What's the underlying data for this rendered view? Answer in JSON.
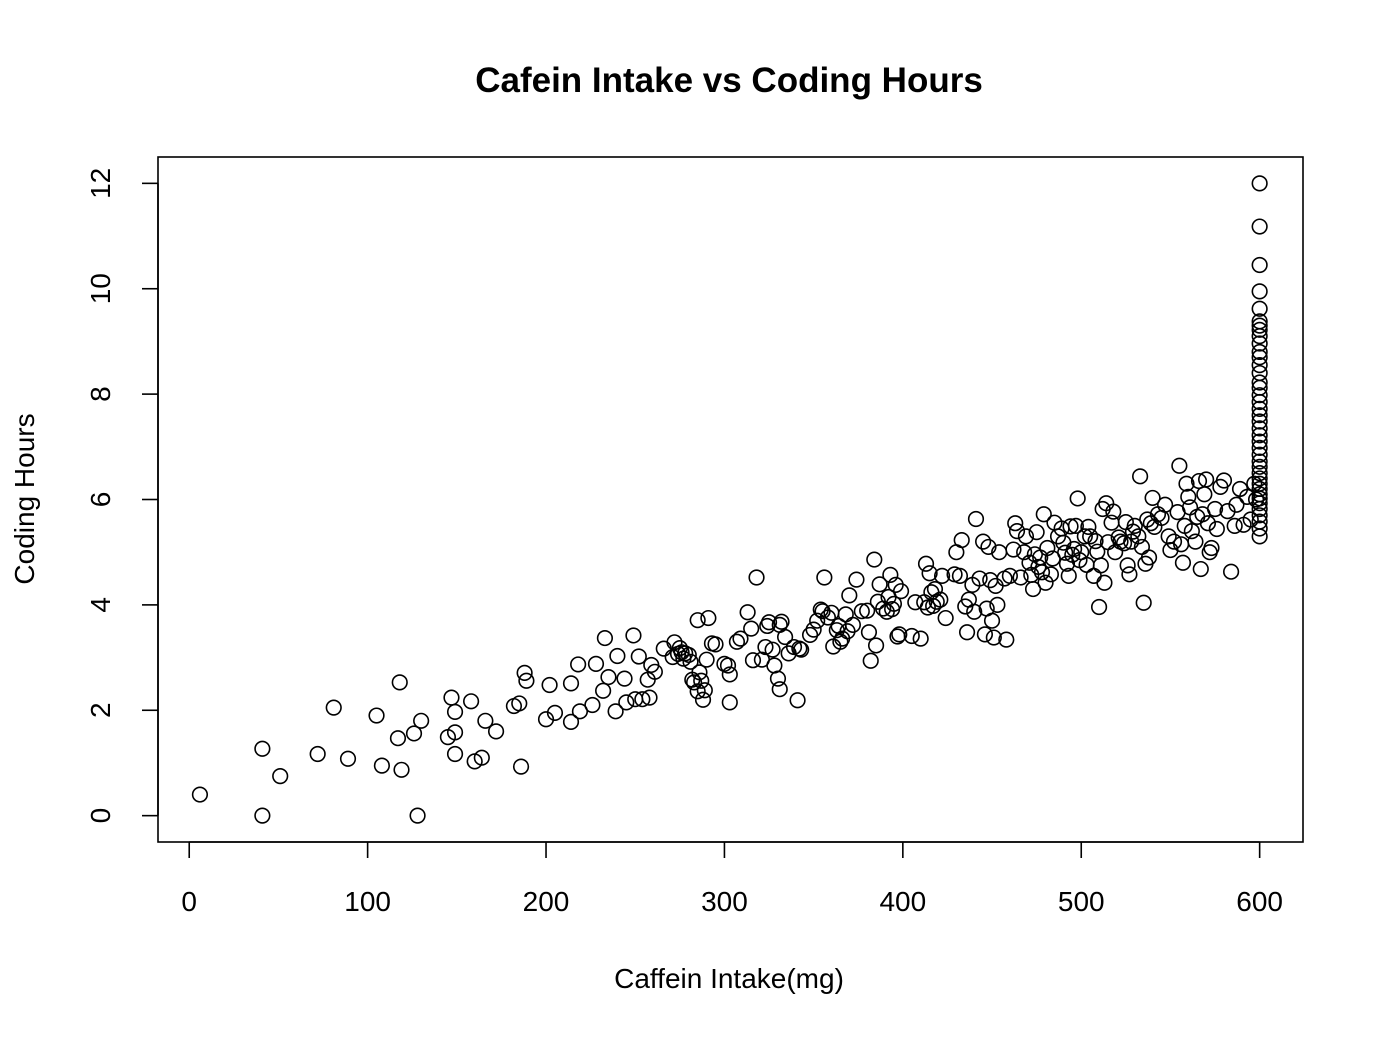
{
  "chart_data": {
    "type": "scatter",
    "title": "Cafein Intake vs Coding Hours",
    "xlabel": "Caffein Intake(mg)",
    "ylabel": "Coding Hours",
    "xlim": [
      -17.5,
      624.3
    ],
    "ylim": [
      -0.5,
      12.5
    ],
    "xticks": [
      0,
      100,
      200,
      300,
      400,
      500,
      600
    ],
    "yticks": [
      0,
      2,
      4,
      6,
      8,
      10,
      12
    ],
    "grid": false,
    "legend": "none",
    "points": [
      [
        6,
        0.4
      ],
      [
        41,
        1.27
      ],
      [
        41,
        0.0
      ],
      [
        51,
        0.75
      ],
      [
        72,
        1.17
      ],
      [
        81,
        2.05
      ],
      [
        89,
        1.08
      ],
      [
        105,
        1.9
      ],
      [
        108,
        0.95
      ],
      [
        117,
        1.47
      ],
      [
        118,
        2.53
      ],
      [
        119,
        0.87
      ],
      [
        126,
        1.56
      ],
      [
        128,
        0.0
      ],
      [
        130,
        1.8
      ],
      [
        145,
        1.49
      ],
      [
        147,
        2.24
      ],
      [
        149,
        1.97
      ],
      [
        149,
        1.58
      ],
      [
        149,
        1.17
      ],
      [
        158,
        2.17
      ],
      [
        160,
        1.03
      ],
      [
        164,
        1.1
      ],
      [
        166,
        1.8
      ],
      [
        172,
        1.6
      ],
      [
        182,
        2.08
      ],
      [
        185,
        2.13
      ],
      [
        186,
        0.93
      ],
      [
        188,
        2.71
      ],
      [
        189,
        2.56
      ],
      [
        200,
        1.83
      ],
      [
        202,
        2.48
      ],
      [
        205,
        1.95
      ],
      [
        214,
        2.51
      ],
      [
        214,
        1.78
      ],
      [
        218,
        2.87
      ],
      [
        219,
        1.98
      ],
      [
        226,
        2.1
      ],
      [
        228,
        2.88
      ],
      [
        232,
        2.37
      ],
      [
        233,
        3.37
      ],
      [
        235,
        2.63
      ],
      [
        239,
        1.98
      ],
      [
        240,
        3.03
      ],
      [
        244,
        2.6
      ],
      [
        245,
        2.15
      ],
      [
        249,
        3.42
      ],
      [
        250,
        2.21
      ],
      [
        252,
        3.02
      ],
      [
        254,
        2.21
      ],
      [
        257,
        2.58
      ],
      [
        258,
        2.24
      ],
      [
        259,
        2.86
      ],
      [
        261,
        2.73
      ],
      [
        266,
        3.17
      ],
      [
        271,
        3.01
      ],
      [
        272,
        3.29
      ],
      [
        274,
        3.07
      ],
      [
        275,
        3.18
      ],
      [
        276,
        3.1
      ],
      [
        277,
        2.98
      ],
      [
        278,
        3.08
      ],
      [
        280,
        3.05
      ],
      [
        281,
        2.92
      ],
      [
        282,
        2.58
      ],
      [
        283,
        2.53
      ],
      [
        285,
        2.36
      ],
      [
        285,
        3.71
      ],
      [
        286,
        2.72
      ],
      [
        287,
        2.56
      ],
      [
        288,
        2.2
      ],
      [
        289,
        2.38
      ],
      [
        290,
        2.96
      ],
      [
        291,
        3.75
      ],
      [
        293,
        3.27
      ],
      [
        295,
        3.25
      ],
      [
        300,
        2.88
      ],
      [
        302,
        2.85
      ],
      [
        303,
        2.68
      ],
      [
        303,
        2.15
      ],
      [
        307,
        3.3
      ],
      [
        309,
        3.36
      ],
      [
        313,
        3.86
      ],
      [
        315,
        3.55
      ],
      [
        316,
        2.95
      ],
      [
        318,
        4.52
      ],
      [
        321,
        2.96
      ],
      [
        323,
        3.2
      ],
      [
        324,
        3.6
      ],
      [
        325,
        3.67
      ],
      [
        327,
        3.15
      ],
      [
        328,
        2.85
      ],
      [
        330,
        2.6
      ],
      [
        331,
        2.4
      ],
      [
        331,
        3.62
      ],
      [
        332,
        3.68
      ],
      [
        334,
        3.39
      ],
      [
        336,
        3.08
      ],
      [
        339,
        3.2
      ],
      [
        342,
        3.17
      ],
      [
        341,
        2.19
      ],
      [
        343,
        3.15
      ],
      [
        348,
        3.43
      ],
      [
        350,
        3.53
      ],
      [
        352,
        3.7
      ],
      [
        354,
        3.91
      ],
      [
        355,
        3.88
      ],
      [
        356,
        4.52
      ],
      [
        358,
        3.76
      ],
      [
        360,
        3.85
      ],
      [
        361,
        3.21
      ],
      [
        363,
        3.52
      ],
      [
        364,
        3.6
      ],
      [
        365,
        3.3
      ],
      [
        366,
        3.36
      ],
      [
        368,
        3.82
      ],
      [
        369,
        3.5
      ],
      [
        370,
        4.18
      ],
      [
        372,
        3.62
      ],
      [
        374,
        4.48
      ],
      [
        377,
        3.88
      ],
      [
        380,
        3.89
      ],
      [
        381,
        3.48
      ],
      [
        382,
        2.94
      ],
      [
        384,
        4.86
      ],
      [
        385,
        3.23
      ],
      [
        386,
        4.06
      ],
      [
        387,
        4.39
      ],
      [
        389,
        3.93
      ],
      [
        391,
        3.87
      ],
      [
        392,
        4.15
      ],
      [
        393,
        4.57
      ],
      [
        394,
        3.92
      ],
      [
        395,
        4.02
      ],
      [
        396,
        4.38
      ],
      [
        397,
        3.4
      ],
      [
        398,
        3.44
      ],
      [
        399,
        4.26
      ],
      [
        405,
        3.41
      ],
      [
        407,
        4.05
      ],
      [
        410,
        3.36
      ],
      [
        412,
        4.05
      ],
      [
        413,
        4.78
      ],
      [
        414,
        3.95
      ],
      [
        415,
        4.6
      ],
      [
        416,
        4.24
      ],
      [
        417,
        3.98
      ],
      [
        418,
        4.3
      ],
      [
        419,
        4.06
      ],
      [
        421,
        4.1
      ],
      [
        422,
        4.55
      ],
      [
        424,
        3.75
      ],
      [
        429,
        4.58
      ],
      [
        430,
        5.0
      ],
      [
        432,
        4.55
      ],
      [
        433,
        5.23
      ],
      [
        435,
        3.97
      ],
      [
        436,
        3.48
      ],
      [
        437,
        4.1
      ],
      [
        439,
        4.38
      ],
      [
        440,
        3.87
      ],
      [
        441,
        5.63
      ],
      [
        443,
        4.5
      ],
      [
        445,
        5.2
      ],
      [
        446,
        3.44
      ],
      [
        447,
        3.93
      ],
      [
        448,
        5.1
      ],
      [
        449,
        4.47
      ],
      [
        450,
        3.7
      ],
      [
        451,
        3.38
      ],
      [
        452,
        4.36
      ],
      [
        453,
        4.0
      ],
      [
        454,
        5.0
      ],
      [
        457,
        4.5
      ],
      [
        458,
        3.34
      ],
      [
        460,
        4.55
      ],
      [
        462,
        5.05
      ],
      [
        463,
        5.55
      ],
      [
        464,
        5.4
      ],
      [
        466,
        4.52
      ],
      [
        468,
        5.0
      ],
      [
        469,
        5.3
      ],
      [
        471,
        4.8
      ],
      [
        472,
        4.57
      ],
      [
        473,
        4.3
      ],
      [
        474,
        4.96
      ],
      [
        475,
        5.38
      ],
      [
        476,
        4.72
      ],
      [
        477,
        4.9
      ],
      [
        478,
        4.62
      ],
      [
        479,
        5.72
      ],
      [
        480,
        4.42
      ],
      [
        481,
        5.08
      ],
      [
        483,
        4.58
      ],
      [
        484,
        4.88
      ],
      [
        485,
        5.56
      ],
      [
        487,
        5.3
      ],
      [
        489,
        5.45
      ],
      [
        490,
        5.18
      ],
      [
        491,
        4.99
      ],
      [
        492,
        4.78
      ],
      [
        493,
        4.55
      ],
      [
        494,
        5.49
      ],
      [
        495,
        4.95
      ],
      [
        496,
        5.06
      ],
      [
        497,
        5.5
      ],
      [
        498,
        6.02
      ],
      [
        499,
        4.85
      ],
      [
        500,
        5.0
      ],
      [
        502,
        5.3
      ],
      [
        503,
        4.76
      ],
      [
        504,
        5.48
      ],
      [
        505,
        5.3
      ],
      [
        507,
        4.55
      ],
      [
        508,
        5.21
      ],
      [
        509,
        5.01
      ],
      [
        510,
        3.96
      ],
      [
        511,
        4.75
      ],
      [
        512,
        5.82
      ],
      [
        513,
        4.42
      ],
      [
        514,
        5.93
      ],
      [
        515,
        5.19
      ],
      [
        517,
        5.56
      ],
      [
        518,
        5.77
      ],
      [
        519,
        5.0
      ],
      [
        521,
        5.28
      ],
      [
        522,
        5.2
      ],
      [
        524,
        5.17
      ],
      [
        525,
        5.57
      ],
      [
        526,
        4.75
      ],
      [
        527,
        4.58
      ],
      [
        528,
        5.2
      ],
      [
        529,
        5.39
      ],
      [
        530,
        5.5
      ],
      [
        532,
        5.3
      ],
      [
        533,
        6.44
      ],
      [
        534,
        5.1
      ],
      [
        535,
        4.04
      ],
      [
        536,
        4.78
      ],
      [
        537,
        5.62
      ],
      [
        538,
        4.9
      ],
      [
        539,
        5.55
      ],
      [
        540,
        6.03
      ],
      [
        541,
        5.48
      ],
      [
        543,
        5.72
      ],
      [
        545,
        5.65
      ],
      [
        547,
        5.9
      ],
      [
        549,
        5.3
      ],
      [
        550,
        5.04
      ],
      [
        552,
        5.2
      ],
      [
        554,
        5.76
      ],
      [
        555,
        6.64
      ],
      [
        556,
        5.15
      ],
      [
        557,
        4.8
      ],
      [
        558,
        5.5
      ],
      [
        559,
        6.3
      ],
      [
        560,
        6.05
      ],
      [
        561,
        5.85
      ],
      [
        562,
        5.4
      ],
      [
        564,
        5.2
      ],
      [
        565,
        5.67
      ],
      [
        566,
        6.35
      ],
      [
        567,
        4.68
      ],
      [
        568,
        5.72
      ],
      [
        569,
        6.1
      ],
      [
        570,
        6.38
      ],
      [
        571,
        5.55
      ],
      [
        572,
        5.0
      ],
      [
        573,
        5.08
      ],
      [
        575,
        5.82
      ],
      [
        576,
        5.44
      ],
      [
        578,
        6.24
      ],
      [
        580,
        6.36
      ],
      [
        582,
        5.78
      ],
      [
        584,
        4.63
      ],
      [
        586,
        5.5
      ],
      [
        587,
        5.9
      ],
      [
        589,
        6.2
      ],
      [
        591,
        5.52
      ],
      [
        593,
        6.05
      ],
      [
        595,
        5.62
      ],
      [
        597,
        6.3
      ],
      [
        598,
        6.0
      ],
      [
        600,
        12.0
      ],
      [
        600,
        11.18
      ],
      [
        600,
        10.45
      ],
      [
        600,
        9.95
      ],
      [
        600,
        9.62
      ],
      [
        600,
        9.38
      ],
      [
        600,
        9.3
      ],
      [
        600,
        9.22
      ],
      [
        600,
        9.1
      ],
      [
        600,
        8.96
      ],
      [
        600,
        8.8
      ],
      [
        600,
        8.7
      ],
      [
        600,
        8.55
      ],
      [
        600,
        8.4
      ],
      [
        600,
        8.22
      ],
      [
        600,
        8.12
      ],
      [
        600,
        7.98
      ],
      [
        600,
        7.85
      ],
      [
        600,
        7.72
      ],
      [
        600,
        7.6
      ],
      [
        600,
        7.48
      ],
      [
        600,
        7.35
      ],
      [
        600,
        7.22
      ],
      [
        600,
        7.1
      ],
      [
        600,
        6.98
      ],
      [
        600,
        6.85
      ],
      [
        600,
        6.72
      ],
      [
        600,
        6.62
      ],
      [
        600,
        6.5
      ],
      [
        600,
        6.4
      ],
      [
        600,
        6.3
      ],
      [
        600,
        6.2
      ],
      [
        600,
        6.1
      ],
      [
        600,
        6.02
      ],
      [
        600,
        5.93
      ],
      [
        600,
        5.82
      ],
      [
        600,
        5.7
      ],
      [
        600,
        5.58
      ],
      [
        600,
        5.45
      ],
      [
        600,
        5.3
      ]
    ]
  }
}
